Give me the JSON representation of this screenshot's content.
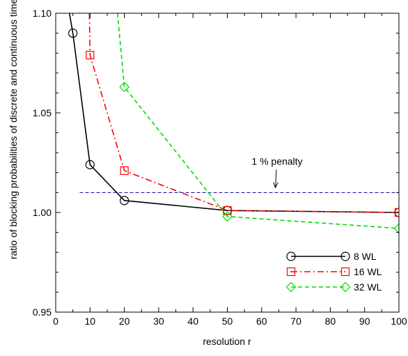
{
  "chart_data": {
    "type": "line",
    "xlabel": "resolution r",
    "ylabel": "ratio of blocking probabilities of discrete and continuous time",
    "xlim": [
      0,
      100
    ],
    "ylim": [
      0.95,
      1.1
    ],
    "x_ticks": [
      0,
      10,
      20,
      30,
      40,
      50,
      60,
      70,
      80,
      90,
      100
    ],
    "x_tick_labels": [
      "0",
      "10",
      "20",
      "30",
      "40",
      "50",
      "60",
      "70",
      "80",
      "90",
      "100"
    ],
    "y_ticks": [
      0.95,
      1.0,
      1.05,
      1.1
    ],
    "y_tick_labels": [
      "0.95",
      "1.00",
      "1.05",
      "1.10"
    ],
    "grid": false,
    "legend_position": "bottom-right",
    "series": [
      {
        "name": "8 WL",
        "color": "#000000",
        "line_style": "solid",
        "marker": "circle",
        "line_x": [
          4,
          5,
          10,
          20,
          50,
          100
        ],
        "line_y": [
          1.1,
          1.09,
          1.024,
          1.006,
          1.001,
          1.0
        ],
        "marker_x": [
          5,
          10,
          20,
          50,
          100
        ],
        "marker_y": [
          1.09,
          1.024,
          1.006,
          1.001,
          1.0
        ]
      },
      {
        "name": "16 WL",
        "color": "#ff0000",
        "line_style": "dashdot",
        "marker": "square",
        "line_x": [
          9.8,
          10,
          20,
          50,
          100
        ],
        "line_y": [
          1.1,
          1.079,
          1.021,
          1.001,
          1.0
        ],
        "marker_x": [
          10,
          20,
          50,
          100
        ],
        "marker_y": [
          1.079,
          1.021,
          1.001,
          1.0
        ]
      },
      {
        "name": "32 WL",
        "color": "#00dd00",
        "line_style": "dashed",
        "marker": "diamond",
        "line_x": [
          18,
          20,
          50,
          100
        ],
        "line_y": [
          1.1,
          1.063,
          0.998,
          0.992
        ],
        "marker_x": [
          20,
          50,
          100
        ],
        "marker_y": [
          1.063,
          0.998,
          0.992
        ]
      }
    ],
    "reference_line": {
      "y": 1.01,
      "x_range": [
        7,
        100
      ],
      "color": "#0000aa",
      "style": "dashed"
    },
    "annotation": {
      "text": "1 % penalty",
      "text_x": 64.5,
      "text_y": 1.024,
      "arrow_to_x": 64,
      "arrow_to_y": 1.0125
    }
  }
}
